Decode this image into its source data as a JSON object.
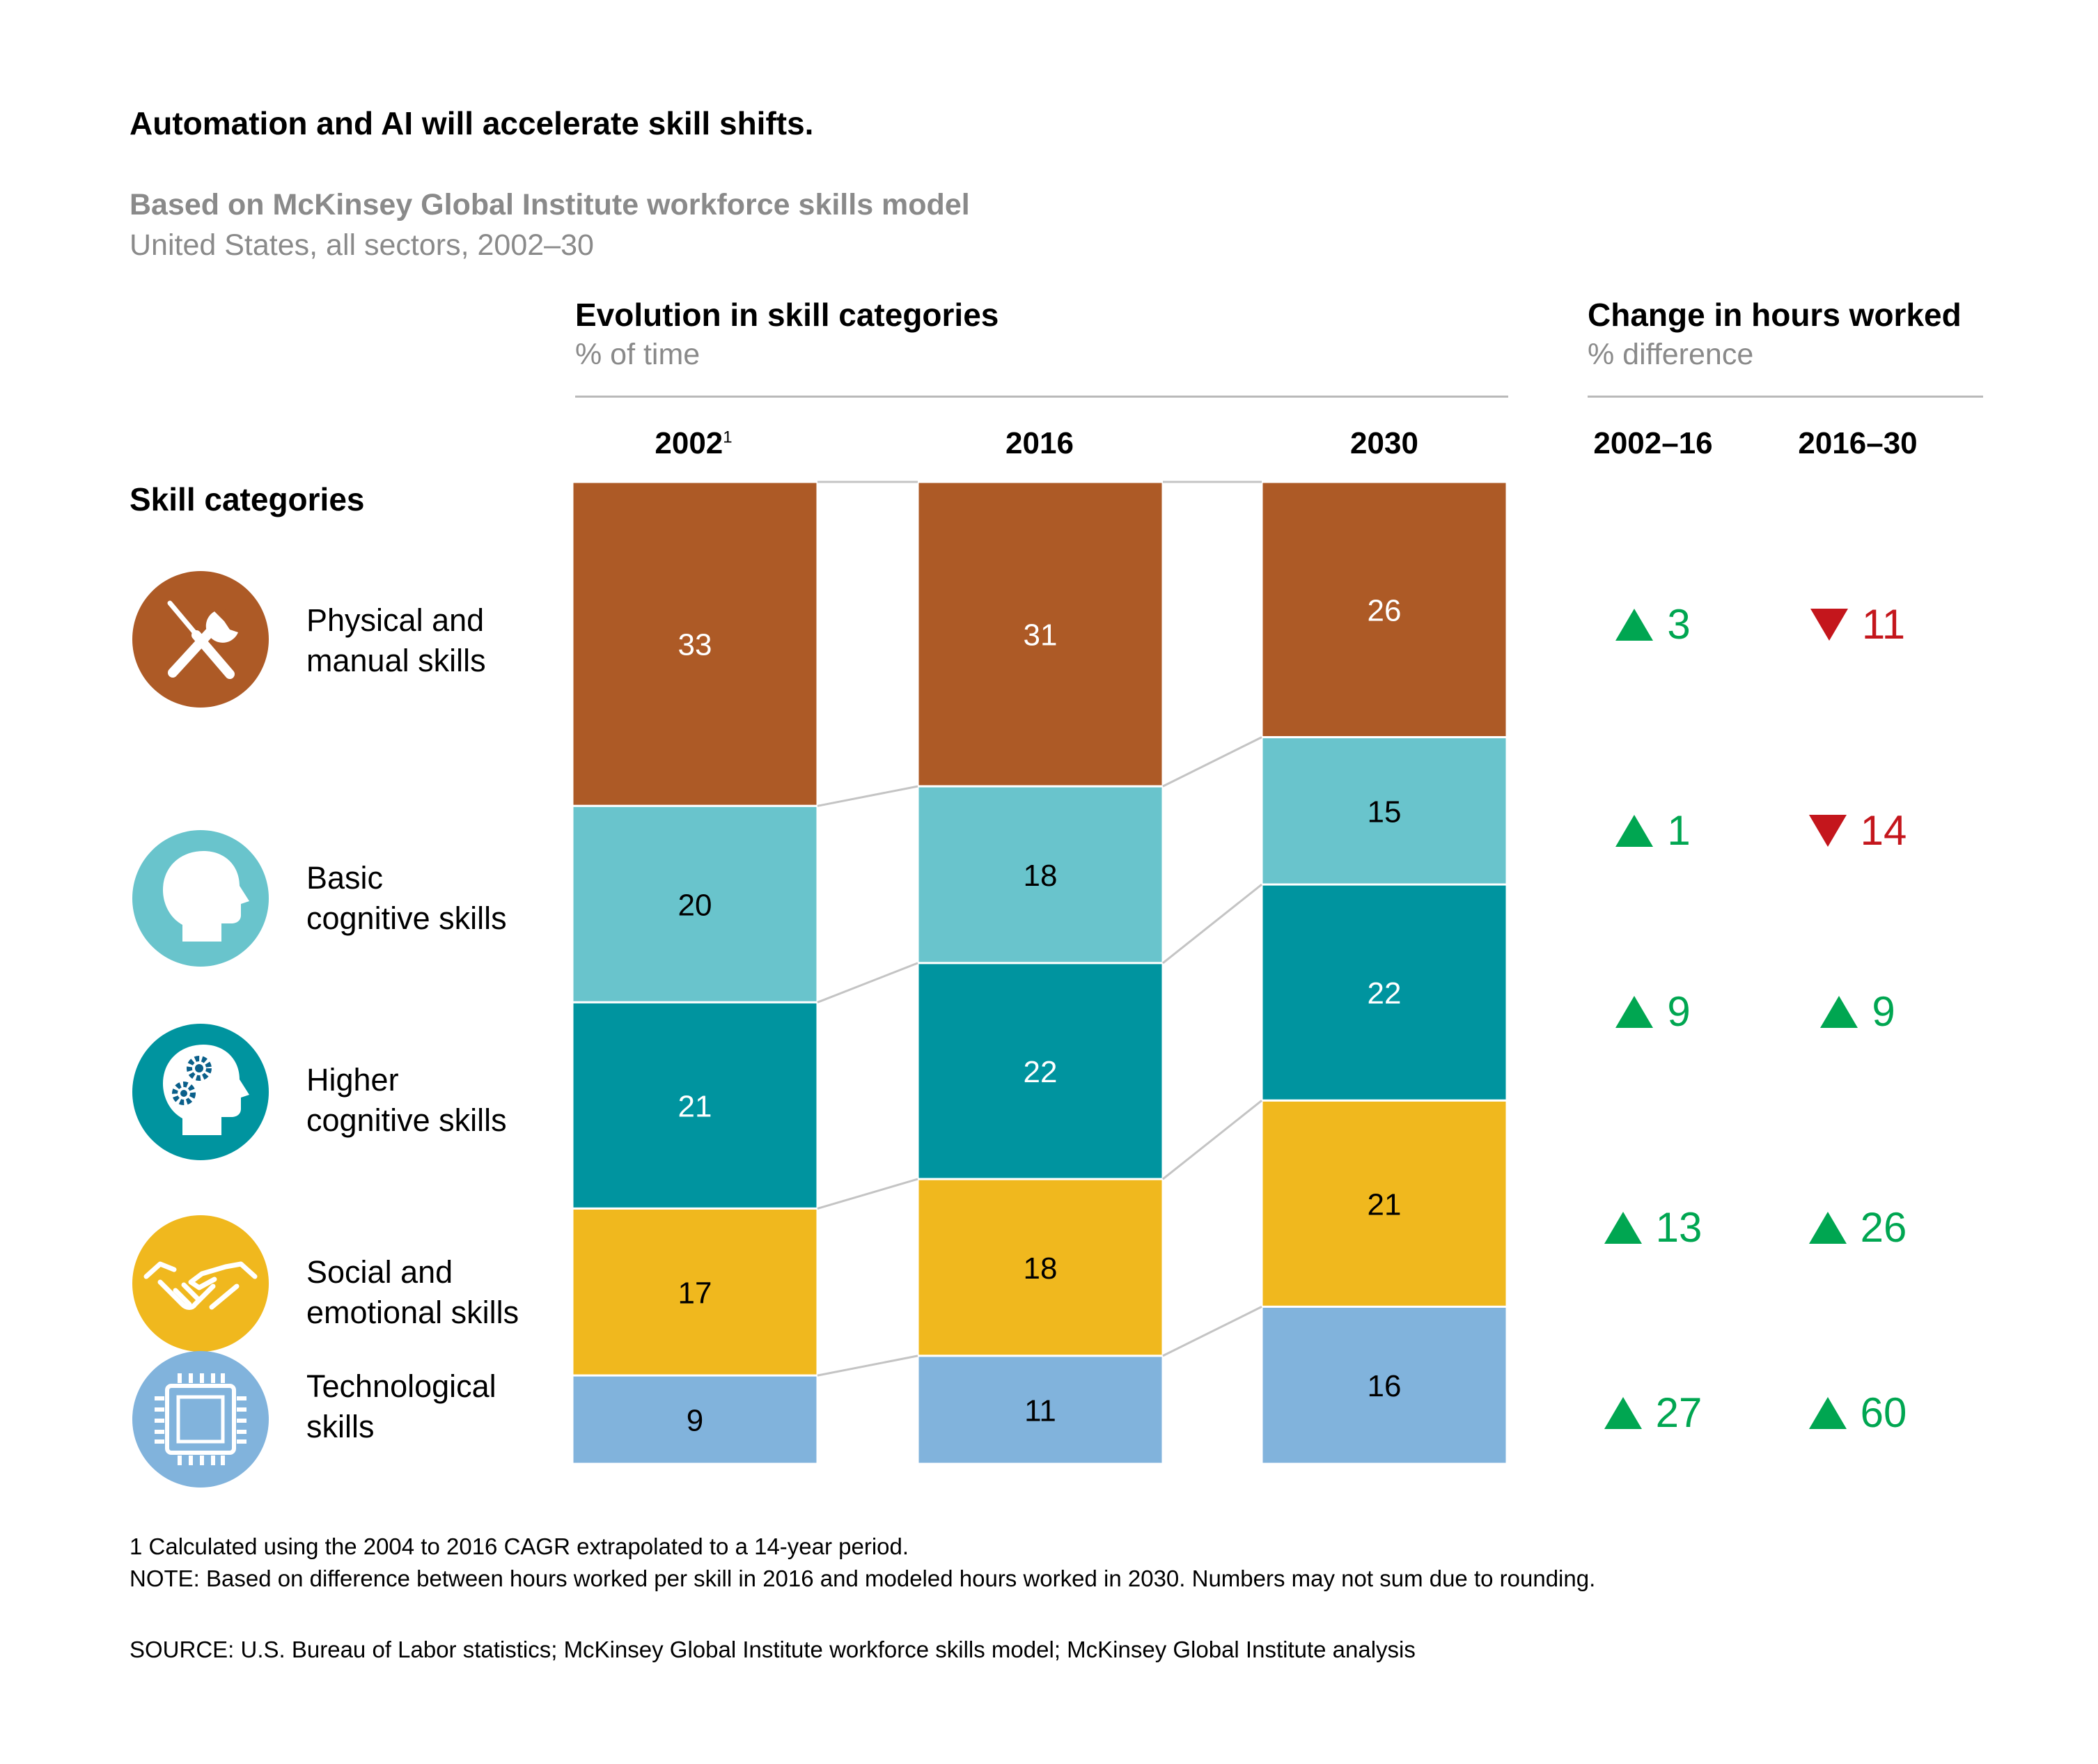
{
  "title": "Automation and AI will accelerate skill shifts.",
  "subtitle": "Based on McKinsey Global Institute workforce skills model",
  "subtitle2": "United States, all sectors, 2002–30",
  "evolution": {
    "title": "Evolution in skill categories",
    "unit": "% of time"
  },
  "change": {
    "title": "Change in hours worked",
    "unit": "% difference",
    "periods": [
      "2002–16",
      "2016–30"
    ]
  },
  "skill_categories_label": "Skill categories",
  "categories": [
    {
      "line1": "Physical and",
      "line2": "manual skills",
      "icon": "tools-icon",
      "color": "#ad5a26"
    },
    {
      "line1": "Basic",
      "line2": "cognitive skills",
      "icon": "head-icon",
      "color": "#69c4cc"
    },
    {
      "line1": "Higher",
      "line2": "cognitive skills",
      "icon": "head-gears-icon",
      "color": "#00949f"
    },
    {
      "line1": "Social and",
      "line2": "emotional skills",
      "icon": "handshake-icon",
      "color": "#f0b81e"
    },
    {
      "line1": "Technological",
      "line2": "skills",
      "icon": "chip-icon",
      "color": "#81b3dc"
    }
  ],
  "chart_data": {
    "type": "bar",
    "stacked": true,
    "title": "Evolution in skill categories",
    "ylabel": "% of time",
    "categories": [
      "2002",
      "2016",
      "2030"
    ],
    "footnote_markers": [
      "1",
      "",
      ""
    ],
    "series": [
      {
        "name": "Physical and manual skills",
        "values": [
          33,
          31,
          26
        ],
        "color": "#ad5a26",
        "label_color": "#ffffff"
      },
      {
        "name": "Basic cognitive skills",
        "values": [
          20,
          18,
          15
        ],
        "color": "#69c4cc",
        "label_color": "#000000"
      },
      {
        "name": "Higher cognitive skills",
        "values": [
          21,
          22,
          22
        ],
        "color": "#00949f",
        "label_color": "#ffffff"
      },
      {
        "name": "Social and emotional skills",
        "values": [
          17,
          18,
          21
        ],
        "color": "#f0b81e",
        "label_color": "#000000"
      },
      {
        "name": "Technological skills",
        "values": [
          9,
          11,
          16
        ],
        "color": "#81b3dc",
        "label_color": "#000000"
      }
    ],
    "change_in_hours": [
      {
        "values": [
          3,
          -11
        ],
        "labels": [
          "3",
          "11"
        ]
      },
      {
        "values": [
          1,
          -14
        ],
        "labels": [
          "1",
          "14"
        ]
      },
      {
        "values": [
          9,
          9
        ],
        "labels": [
          "9",
          "9"
        ]
      },
      {
        "values": [
          13,
          26
        ],
        "labels": [
          "13",
          "26"
        ]
      },
      {
        "values": [
          27,
          60
        ],
        "labels": [
          "27",
          "60"
        ]
      }
    ],
    "colors": {
      "up": "#00a651",
      "down": "#c4161c"
    }
  },
  "notes": {
    "footnote": "1  Calculated using the 2004 to 2016 CAGR extrapolated to a 14-year period.",
    "note": "NOTE: Based on difference between hours worked per skill in 2016 and modeled hours worked in 2030. Numbers may not sum due to rounding.",
    "source": "SOURCE:  U.S. Bureau of Labor statistics; McKinsey Global Institute workforce skills model; McKinsey Global Institute analysis"
  }
}
